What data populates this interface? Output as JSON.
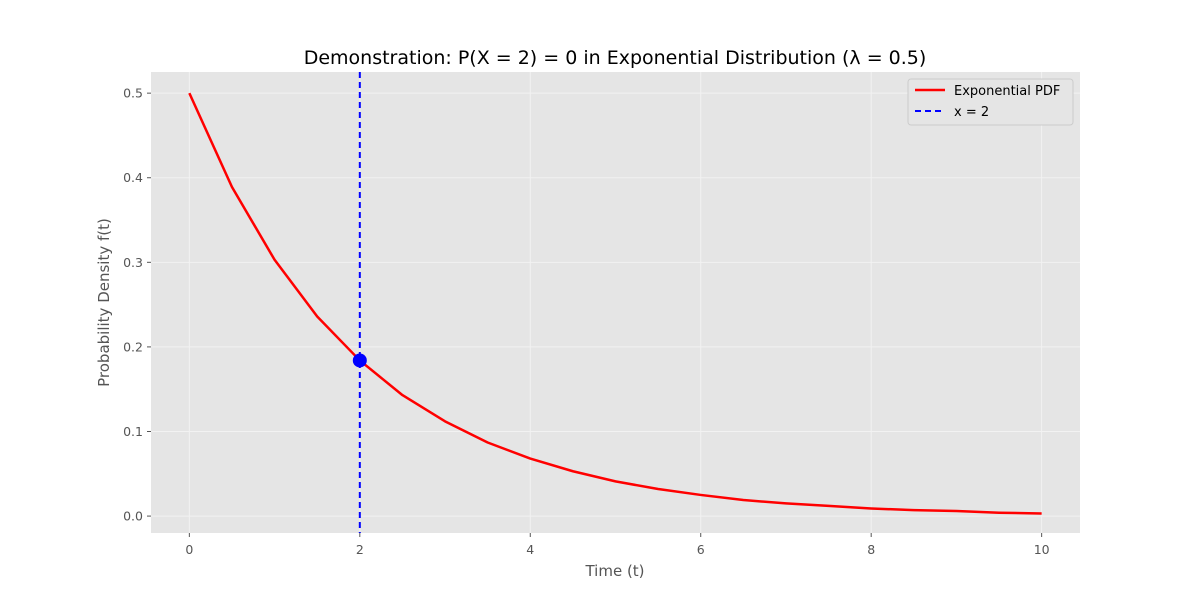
{
  "chart_data": {
    "type": "line",
    "title": "Demonstration: P(X = 2) = 0 in Exponential Distribution (λ = 0.5)",
    "xlabel": "Time (t)",
    "ylabel": "Probability Density f(t)",
    "xlim": [
      -0.45,
      10.45
    ],
    "ylim": [
      -0.02,
      0.525
    ],
    "xticks": [
      0,
      2,
      4,
      6,
      8,
      10
    ],
    "yticks": [
      0.0,
      0.1,
      0.2,
      0.3,
      0.4,
      0.5
    ],
    "xtick_labels": [
      "0",
      "2",
      "4",
      "6",
      "8",
      "10"
    ],
    "ytick_labels": [
      "0.0",
      "0.1",
      "0.2",
      "0.3",
      "0.4",
      "0.5"
    ],
    "grid": true,
    "legend_position": "top-right",
    "series": [
      {
        "name": "Exponential PDF",
        "color": "#ff0000",
        "style": "solid",
        "x": [
          0,
          0.5,
          1,
          1.5,
          2,
          2.5,
          3,
          3.5,
          4,
          4.5,
          5,
          5.5,
          6,
          6.5,
          7,
          7.5,
          8,
          8.5,
          9,
          9.5,
          10
        ],
        "y": [
          0.5,
          0.389,
          0.303,
          0.236,
          0.184,
          0.143,
          0.112,
          0.087,
          0.068,
          0.053,
          0.041,
          0.032,
          0.025,
          0.019,
          0.015,
          0.012,
          0.009,
          0.007,
          0.006,
          0.004,
          0.003
        ]
      },
      {
        "name": "x = 2",
        "color": "#0000ff",
        "style": "dashed",
        "vline_x": 2
      }
    ],
    "marker": {
      "x": 2,
      "y": 0.184,
      "color": "#0000ff"
    },
    "colors": {
      "plot_background": "#e5e5e5",
      "grid": "#f2f2f2"
    }
  }
}
